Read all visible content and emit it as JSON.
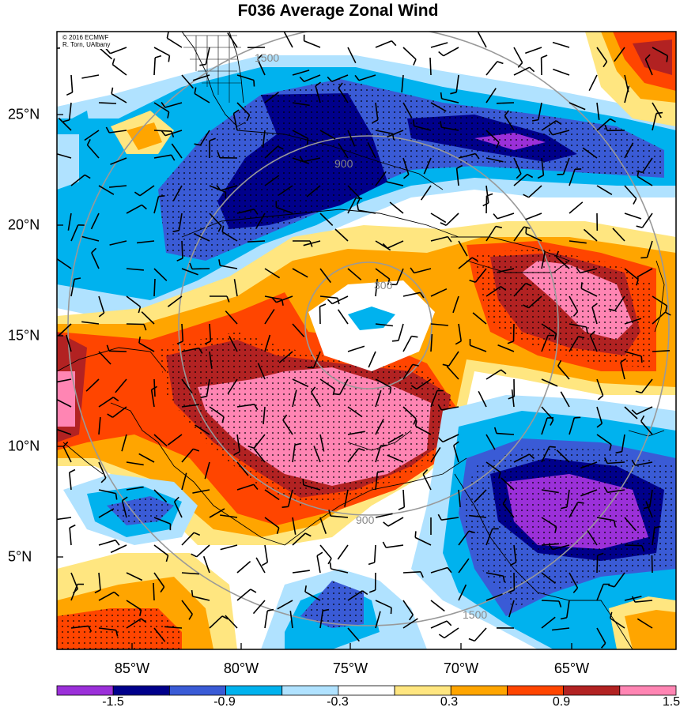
{
  "title": "F036 Average Zonal Wind",
  "credit": {
    "line1": "© 2016 ECMWF",
    "line2": "R. Torn, UAlbany"
  },
  "lat_labels": [
    "25°N",
    "20°N",
    "15°N",
    "10°N",
    "5°N"
  ],
  "lon_labels": [
    "85°W",
    "80°W",
    "75°W",
    "70°W",
    "65°W"
  ],
  "colorbar": {
    "labels": [
      "-1.5",
      "-0.9",
      "-0.3",
      "0.3",
      "0.9",
      "1.5"
    ],
    "colors": [
      "#9b30d9",
      "#00008b",
      "#3a5bd6",
      "#00b2ee",
      "#b0e2ff",
      "#ffffff",
      "#ffe680",
      "#ffa500",
      "#ff4500",
      "#b22222",
      "#ff85b3"
    ]
  },
  "range_rings": [
    "300",
    "900",
    "1500"
  ],
  "colors": {
    "ring": "#999999",
    "coast": "#000000",
    "barb": "#000000"
  }
}
